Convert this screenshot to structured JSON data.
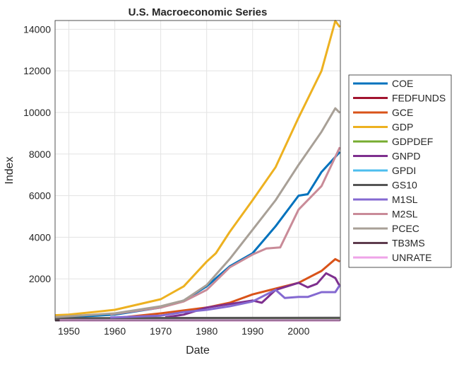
{
  "chart_data": {
    "type": "line",
    "title": "U.S. Macroeconomic Series",
    "xlabel": "Date",
    "ylabel": "Index",
    "xlim": [
      1947,
      2009.1
    ],
    "ylim": [
      0,
      14420
    ],
    "xticks": [
      1950,
      1960,
      1970,
      1980,
      1990,
      2000
    ],
    "yticks": [
      2000,
      4000,
      6000,
      8000,
      10000,
      12000,
      14000
    ],
    "grid": true,
    "legend_position": "right-outside",
    "series": [
      {
        "name": "COE",
        "color": "#0072BD",
        "x": [
          1947,
          1950,
          1960,
          1970,
          1975,
          1980,
          1985,
          1990,
          1995,
          2000,
          2002,
          2005,
          2009
        ],
        "values": [
          130,
          160,
          280,
          620,
          960,
          1640,
          2600,
          3230,
          4530,
          6000,
          6070,
          7140,
          8100
        ]
      },
      {
        "name": "FEDFUNDS",
        "color": "#A2142F",
        "x": [
          1954,
          2009
        ],
        "values": [
          5,
          5
        ]
      },
      {
        "name": "GCE",
        "color": "#D95319",
        "x": [
          1947,
          1960,
          1970,
          1980,
          1985,
          1990,
          1995,
          2000,
          2005,
          2008,
          2009
        ],
        "values": [
          40,
          110,
          340,
          620,
          850,
          1250,
          1530,
          1810,
          2380,
          2950,
          2830
        ]
      },
      {
        "name": "GDP",
        "color": "#EDB120",
        "x": [
          1947,
          1950,
          1960,
          1970,
          1975,
          1980,
          1982,
          1985,
          1990,
          1995,
          2000,
          2005,
          2008,
          2009
        ],
        "values": [
          250,
          280,
          510,
          1020,
          1640,
          2830,
          3230,
          4250,
          5780,
          7370,
          9750,
          12000,
          14400,
          14100
        ]
      },
      {
        "name": "GDPDEF",
        "color": "#77AC30",
        "x": [
          1947,
          2009
        ],
        "values": [
          15,
          110
        ]
      },
      {
        "name": "GNPD",
        "color": "#7E2F8E",
        "x": [
          1971,
          1975,
          1980,
          1985,
          1990,
          1992,
          1995,
          2000,
          2002,
          2004,
          2006,
          2008,
          2009
        ],
        "values": [
          150,
          280,
          620,
          790,
          960,
          850,
          1470,
          1810,
          1590,
          1760,
          2270,
          2040,
          1640
        ]
      },
      {
        "name": "GPDI",
        "color": "#4DBEEE",
        "x": [
          1947,
          2009
        ],
        "values": [
          10,
          10
        ]
      },
      {
        "name": "GS10",
        "color": "#555555",
        "x": [
          1947,
          2009
        ],
        "values": [
          110,
          130
        ]
      },
      {
        "name": "M1SL",
        "color": "#8469D1",
        "x": [
          1959,
          1970,
          1975,
          1980,
          1985,
          1990,
          1995,
          1997,
          2000,
          2002,
          2005,
          2008,
          2009
        ],
        "values": [
          140,
          230,
          400,
          510,
          680,
          910,
          1470,
          1080,
          1130,
          1130,
          1360,
          1360,
          1700
        ]
      },
      {
        "name": "M2SL",
        "color": "#C98B98",
        "x": [
          1959,
          1970,
          1975,
          1980,
          1985,
          1990,
          1993,
          1996,
          2000,
          2005,
          2009
        ],
        "values": [
          290,
          620,
          910,
          1470,
          2550,
          3170,
          3460,
          3510,
          5330,
          6460,
          8330
        ]
      },
      {
        "name": "PCEC",
        "color": "#A8A097",
        "x": [
          1947,
          1960,
          1970,
          1975,
          1980,
          1985,
          1990,
          1995,
          2000,
          2005,
          2008,
          2009
        ],
        "values": [
          160,
          340,
          680,
          960,
          1700,
          2950,
          4360,
          5780,
          7480,
          9070,
          10200,
          9980
        ]
      },
      {
        "name": "TB3MS",
        "color": "#5E3C4E",
        "x": [
          1947,
          2009
        ],
        "values": [
          2,
          2
        ]
      },
      {
        "name": "UNRATE",
        "color": "#EFA3E8",
        "x": [
          1948,
          2009
        ],
        "values": [
          5,
          5
        ]
      }
    ]
  }
}
